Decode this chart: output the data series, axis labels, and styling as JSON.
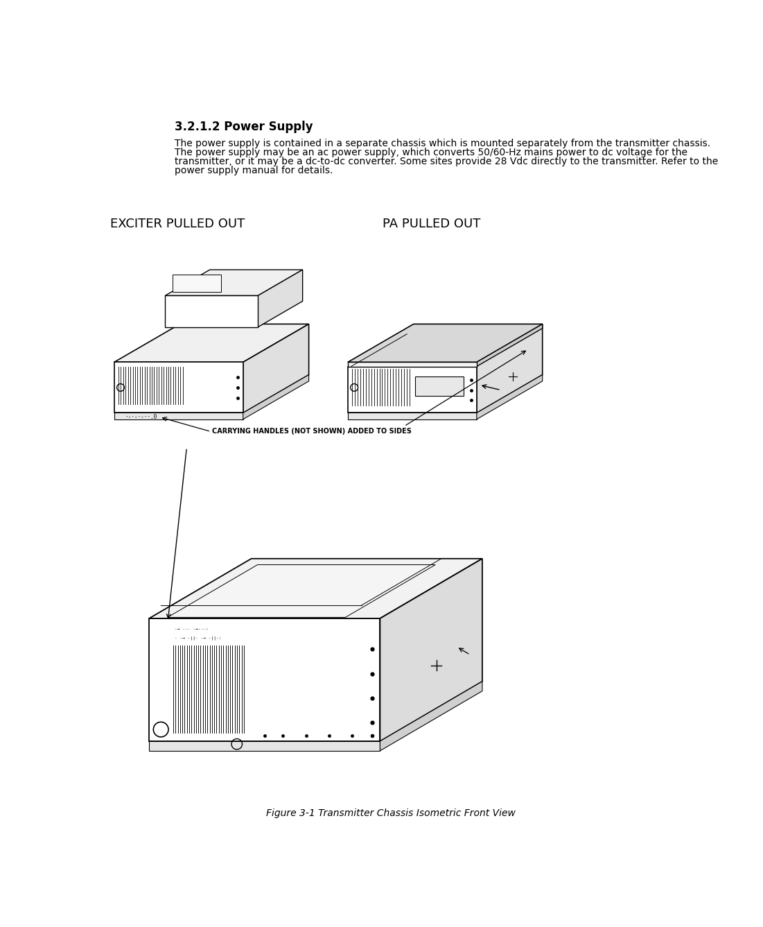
{
  "title": "3.2.1.2 Power Supply",
  "paragraph_lines": [
    "The power supply is contained in a separate chassis which is mounted separately from the transmitter chassis.",
    "The power supply may be an ac power supply, which converts 50/60-Hz mains power to dc voltage for the",
    "transmitter, or it may be a dc-to-dc converter. Some sites provide 28 Vdc directly to the transmitter. Refer to the",
    "power supply manual for details."
  ],
  "label_left": "EXCITER PULLED OUT",
  "label_right": "PA PULLED OUT",
  "annotation": "CARRYING HANDLES (NOT SHOWN) ADDED TO SIDES",
  "caption": "Figure 3-1 Transmitter Chassis Isometric Front View",
  "bg_color": "#ffffff",
  "text_color": "#000000",
  "line_color": "#000000",
  "title_fontsize": 12,
  "body_fontsize": 10,
  "label_fontsize": 13,
  "caption_fontsize": 10,
  "annotation_fontsize": 7
}
